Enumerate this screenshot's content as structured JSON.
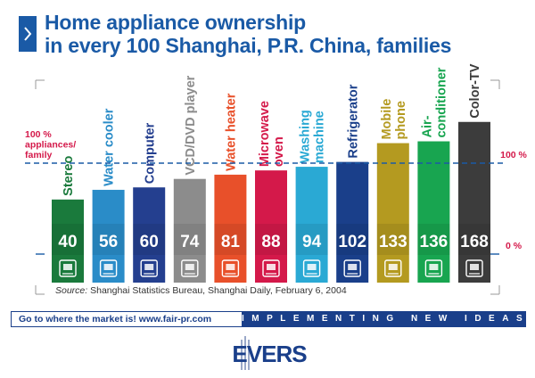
{
  "header": {
    "title_line1": "Home appliance ownership",
    "title_line2": "in every 100 Shanghai, P.R. China, families",
    "chevron_icon": "chevron-right-icon"
  },
  "chart_data": {
    "type": "bar",
    "title": "Home appliance ownership in every 100 Shanghai, P.R. China, families",
    "categories": [
      "Stereo",
      "Water cooler",
      "Computer",
      "VCD/DVD player",
      "Water heater",
      "Microwave oven",
      "Washing machine",
      "Refrigerator",
      "Mobile phone",
      "Air-conditioner",
      "Color-TV"
    ],
    "category_lines": [
      [
        "Stereo"
      ],
      [
        "Water cooler"
      ],
      [
        "Computer"
      ],
      [
        "VCD/DVD player"
      ],
      [
        "Water heater"
      ],
      [
        "Microwave",
        "oven"
      ],
      [
        "Washing",
        "machine"
      ],
      [
        "Refrigerator"
      ],
      [
        "Mobile",
        "phone"
      ],
      [
        "Air-",
        "conditioner"
      ],
      [
        "Color-TV"
      ]
    ],
    "values": [
      40,
      56,
      60,
      74,
      81,
      88,
      94,
      102,
      133,
      136,
      168
    ],
    "colors": [
      "#1a7a3c",
      "#2a8cc8",
      "#243f8f",
      "#8c8c8c",
      "#e8502a",
      "#d4194a",
      "#2aa9d4",
      "#1a3f8a",
      "#b49a20",
      "#18a550",
      "#3c3c3c"
    ],
    "label_colors": [
      "#1a7a3c",
      "#2a8cc8",
      "#243f8f",
      "#8c8c8c",
      "#e8502a",
      "#d4194a",
      "#2aa9d4",
      "#1a3f8a",
      "#b49a20",
      "#18a550",
      "#3c3c3c"
    ],
    "icons": [
      "stereo-icon",
      "water-cooler-icon",
      "computer-icon",
      "dvd-player-icon",
      "water-heater-icon",
      "microwave-icon",
      "washing-machine-icon",
      "refrigerator-icon",
      "mobile-phone-icon",
      "air-conditioner-icon",
      "color-tv-icon"
    ],
    "reference_line": {
      "value": 100,
      "left_label_lines": [
        "100 %",
        "appliances/",
        "family"
      ],
      "right_label": "100 %",
      "color": "#d4194a",
      "line_color": "#1a5aa6"
    },
    "zero_label": "0 %",
    "ylim": [
      0,
      168
    ],
    "xlabel": "",
    "ylabel": ""
  },
  "source": {
    "label": "Source:",
    "text": " Shanghai Statistics Bureau, Shanghai Daily, February 6, 2004"
  },
  "footer": {
    "left_text": "Go to where the market is!  www.fair-pr.com",
    "right_text": "IMPLEMENTING NEW IDEAS"
  },
  "logo": {
    "text": "EVERS"
  },
  "colors": {
    "brand_blue": "#1a5aa6",
    "footer_navy": "#1a3f8a",
    "accent_red": "#d4194a"
  }
}
